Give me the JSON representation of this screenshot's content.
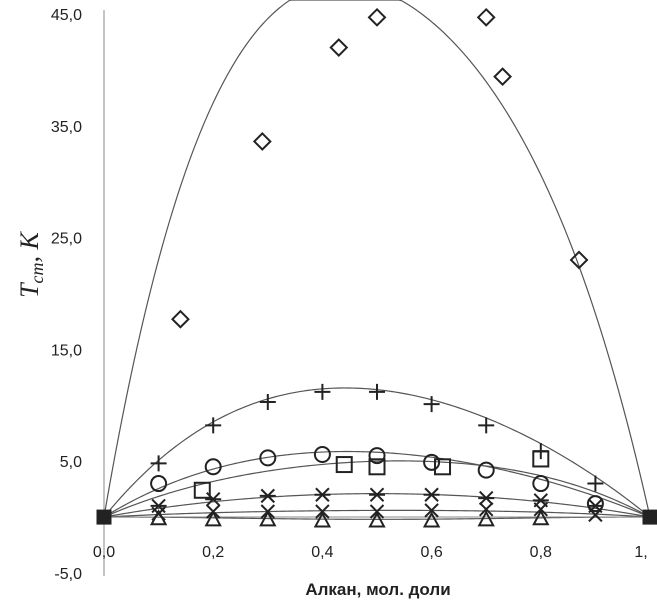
{
  "chart_data": {
    "type": "scatter",
    "title": "",
    "xlabel": "Алкан, мол. доли",
    "ylabel": "T",
    "ylabel_sub": "cm",
    "ylabel_suffix": ", K",
    "xlim": [
      0,
      1
    ],
    "ylim": [
      -5,
      45
    ],
    "x_ticks": [
      "0,0",
      "0,2",
      "0,4",
      "0,6",
      "0,8",
      "1,"
    ],
    "x_tick_values": [
      0,
      0.2,
      0.4,
      0.6,
      0.8,
      1.0
    ],
    "y_ticks": [
      "45,0",
      "35,0",
      "25,0",
      "15,0",
      "5,0",
      "-5,0"
    ],
    "y_tick_values": [
      45,
      35,
      25,
      15,
      5,
      -5
    ],
    "grid": false,
    "legend": "none",
    "series": [
      {
        "marker": "diamond",
        "x": [
          0,
          0.14,
          0.29,
          0.43,
          0.5,
          0.7,
          0.73,
          0.87,
          1.0
        ],
        "y": [
          0,
          17.7,
          33.6,
          42.0,
          44.7,
          44.7,
          39.4,
          23.0,
          0
        ],
        "fit": [
          0,
          0,
          0.25,
          41.5,
          0.5,
          47.2,
          0.75,
          35.2,
          1,
          0
        ]
      },
      {
        "marker": "plus",
        "x": [
          0,
          0.1,
          0.2,
          0.3,
          0.4,
          0.5,
          0.6,
          0.7,
          0.8,
          0.9,
          1.0
        ],
        "y": [
          0,
          4.8,
          8.2,
          10.3,
          11.2,
          11.2,
          10.1,
          8.2,
          5.9,
          3.0,
          0
        ],
        "fit": [
          0,
          0,
          0.25,
          9.7,
          0.5,
          11.4,
          0.75,
          7.8,
          1,
          0
        ]
      },
      {
        "marker": "circle",
        "x": [
          0,
          0.1,
          0.2,
          0.3,
          0.4,
          0.5,
          0.6,
          0.7,
          0.8,
          0.9,
          1.0
        ],
        "y": [
          0,
          3.0,
          4.5,
          5.3,
          5.6,
          5.5,
          4.9,
          4.2,
          3.0,
          1.2,
          0
        ],
        "fit": [
          0,
          0,
          0.25,
          4.9,
          0.5,
          5.8,
          0.75,
          4.0,
          1,
          0
        ]
      },
      {
        "marker": "square",
        "x": [
          0,
          0.18,
          0.44,
          0.5,
          0.62,
          0.8,
          1.0
        ],
        "y": [
          0,
          2.4,
          4.7,
          4.5,
          4.5,
          5.2,
          0
        ],
        "fit": [
          0,
          0,
          0.25,
          3.7,
          0.5,
          5.0,
          0.75,
          4.2,
          1,
          0
        ]
      },
      {
        "marker": "asterisk",
        "x": [
          0,
          0.1,
          0.2,
          0.3,
          0.4,
          0.5,
          0.6,
          0.7,
          0.8,
          0.9,
          1.0
        ],
        "y": [
          0,
          1.0,
          1.6,
          1.9,
          2.0,
          2.0,
          2.0,
          1.7,
          1.5,
          1.0,
          0
        ],
        "fit": [
          0,
          0,
          0.25,
          1.6,
          0.5,
          2.1,
          0.75,
          1.6,
          1,
          0
        ]
      },
      {
        "marker": "cross",
        "x": [
          0,
          0.1,
          0.2,
          0.3,
          0.4,
          0.5,
          0.6,
          0.7,
          0.8,
          0.9,
          1.0
        ],
        "y": [
          0,
          0.3,
          0.5,
          0.5,
          0.5,
          0.5,
          0.6,
          0.7,
          0.7,
          0.2,
          0
        ],
        "fit": [
          0,
          0,
          0.25,
          0.45,
          0.5,
          0.6,
          0.75,
          0.5,
          1,
          0
        ]
      },
      {
        "marker": "triangle",
        "x": [
          0,
          0.1,
          0.2,
          0.3,
          0.4,
          0.5,
          0.6,
          0.7,
          0.8,
          1.0
        ],
        "y": [
          0,
          -0.1,
          -0.2,
          -0.2,
          -0.3,
          -0.3,
          -0.3,
          -0.2,
          -0.1,
          0
        ],
        "fit": [
          0,
          0,
          0.25,
          -0.1,
          0.5,
          -0.2,
          0.75,
          -0.1,
          1,
          0
        ]
      },
      {
        "marker": "filled-square",
        "x": [
          0,
          1.0
        ],
        "y": [
          0,
          0
        ],
        "fit": null
      }
    ]
  }
}
